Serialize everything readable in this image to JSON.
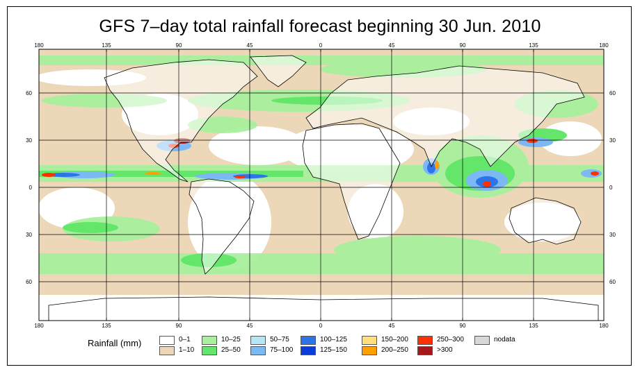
{
  "title": "GFS 7–day total rainfall forecast beginning 30 Jun. 2010",
  "map": {
    "lon_ticks_top": [
      "180",
      "135",
      "90",
      "45",
      "0",
      "45",
      "90",
      "135",
      "180"
    ],
    "lon_ticks_bottom": [
      "180",
      "135",
      "90",
      "45",
      "0",
      "45",
      "90",
      "135",
      "180"
    ],
    "lat_ticks_left": [
      "60",
      "30",
      "0",
      "30",
      "60"
    ],
    "lat_ticks_right": [
      "60",
      "30",
      "0",
      "30",
      "60"
    ],
    "ocean_color": "#ffffff",
    "land_outline_color": "#000000"
  },
  "legend": {
    "title": "Rainfall (mm)",
    "items": [
      {
        "label": "0–1",
        "color": "#ffffff"
      },
      {
        "label": "1–10",
        "color": "#ecd8b8"
      },
      {
        "label": "10–25",
        "color": "#a8f09c"
      },
      {
        "label": "25–50",
        "color": "#64e66a"
      },
      {
        "label": "50–75",
        "color": "#b4e6f4"
      },
      {
        "label": "75–100",
        "color": "#7cb8f4"
      },
      {
        "label": "100–125",
        "color": "#2c74e8"
      },
      {
        "label": "125–150",
        "color": "#0c3cd8"
      },
      {
        "label": "150–200",
        "color": "#ffde7c"
      },
      {
        "label": "200–250",
        "color": "#ffa000"
      },
      {
        "label": "250–300",
        "color": "#ff3000"
      },
      {
        "label": ">300",
        "color": "#a81818"
      },
      {
        "label": "nodata",
        "color": "#d8d8d8"
      }
    ]
  }
}
